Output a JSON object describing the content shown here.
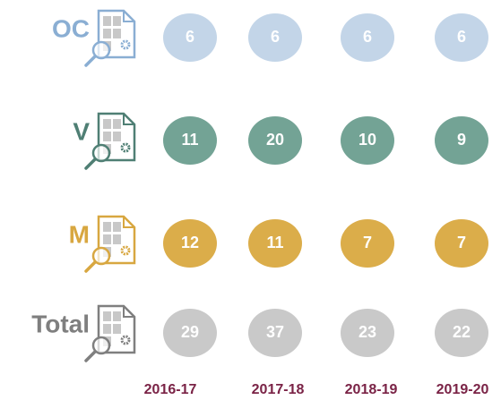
{
  "columns": [
    "2016-17",
    "2017-18",
    "2018-19",
    "2019-20"
  ],
  "rows": [
    {
      "label": "OC",
      "label_color": "#8aaed3",
      "color": "#c3d5e8",
      "values": [
        6,
        6,
        6,
        6
      ]
    },
    {
      "label": "V",
      "label_color": "#4f7f74",
      "color": "#73a395",
      "values": [
        11,
        20,
        10,
        9
      ]
    },
    {
      "label": "M",
      "label_color": "#d8a740",
      "color": "#dbad4a",
      "values": [
        12,
        11,
        7,
        7
      ]
    },
    {
      "label": "Total",
      "label_color": "#7f7f7f",
      "color": "#c9c9c9",
      "values": [
        29,
        37,
        23,
        22
      ]
    }
  ]
}
